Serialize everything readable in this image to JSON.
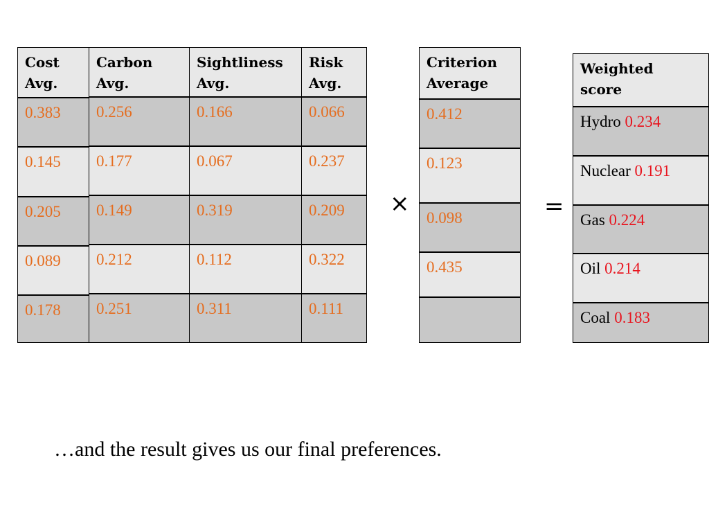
{
  "matrix": {
    "columns": [
      {
        "header": "Cost\nAvg.",
        "values": [
          "0.383",
          "0.145",
          "0.205",
          "0.089",
          "0.178"
        ]
      },
      {
        "header": "Carbon\nAvg.",
        "values": [
          "0.256",
          "0.177",
          "0.149",
          "0.212",
          "0.251"
        ]
      },
      {
        "header": "Sightliness\nAvg.",
        "values": [
          "0.166",
          "0.067",
          "0.319",
          "0.112",
          "0.311"
        ]
      },
      {
        "header": "Risk\nAvg.",
        "values": [
          "0.066",
          "0.237",
          "0.209",
          "0.322",
          "0.111"
        ]
      }
    ]
  },
  "operators": {
    "multiply": "×",
    "equals": "="
  },
  "criterion": {
    "header": "Criterion\nAverage",
    "values": [
      "0.412",
      "0.123",
      "0.098",
      "0.435",
      ""
    ]
  },
  "weighted": {
    "header": "Weighted\nscore",
    "rows": [
      {
        "label": "Hydro",
        "value": "0.234"
      },
      {
        "label": "Nuclear",
        "value": "0.191"
      },
      {
        "label": "Gas",
        "value": "0.224"
      },
      {
        "label": "Oil",
        "value": "0.214"
      },
      {
        "label": "Coal",
        "value": "0.183"
      }
    ]
  },
  "caption": "…and the result gives us our final preferences.",
  "colors": {
    "value_text": "#e56d1f",
    "score_text": "#e8141e",
    "dark_cell": "#c8c8c8",
    "light_cell": "#e8e8e8"
  }
}
